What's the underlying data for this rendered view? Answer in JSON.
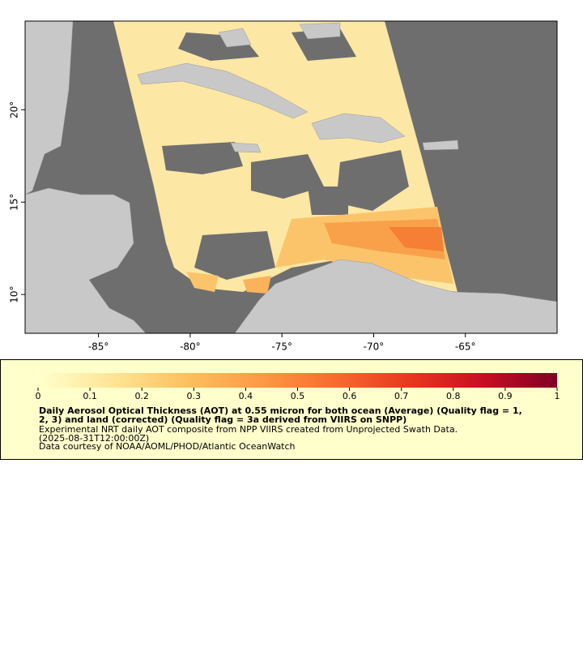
{
  "chart_data": {
    "type": "map",
    "xlim": [
      -89,
      -60
    ],
    "ylim": [
      7.9,
      24.8
    ],
    "xticks": [
      {
        "value": -85,
        "label": "-85°"
      },
      {
        "value": -80,
        "label": "-80°"
      },
      {
        "value": -75,
        "label": "-75°"
      },
      {
        "value": -70,
        "label": "-70°"
      },
      {
        "value": -65,
        "label": "-65°"
      }
    ],
    "yticks": [
      {
        "value": 10,
        "label": "10°"
      },
      {
        "value": 15,
        "label": "15°"
      },
      {
        "value": 20,
        "label": "20°"
      }
    ],
    "colorbar": {
      "range": [
        0,
        1
      ],
      "ticks": [
        0,
        0.1,
        0.2,
        0.3,
        0.4,
        0.5,
        0.6,
        0.7,
        0.8,
        0.9,
        1
      ],
      "colors": [
        "#ffffcc",
        "#fee596",
        "#fdc05f",
        "#fd9a44",
        "#f86b2e",
        "#e8381f",
        "#c80e22",
        "#800026"
      ]
    },
    "legend_lines": [
      "Daily Aerosol Optical Thickness (AOT) at 0.55 micron for both ocean (Average) (Quality flag = 1,",
      "2, 3) and land (corrected) (Quality flag = 3a derived from VIIRS on SNPP)",
      "Experimental NRT daily AOT composite from NPP VIIRS created from Unprojected Swath Data.",
      "(2025-08-31T12:00:00Z)",
      "Data courtesy of NOAA/AOML/PHOD/Atlantic OceanWatch"
    ]
  }
}
